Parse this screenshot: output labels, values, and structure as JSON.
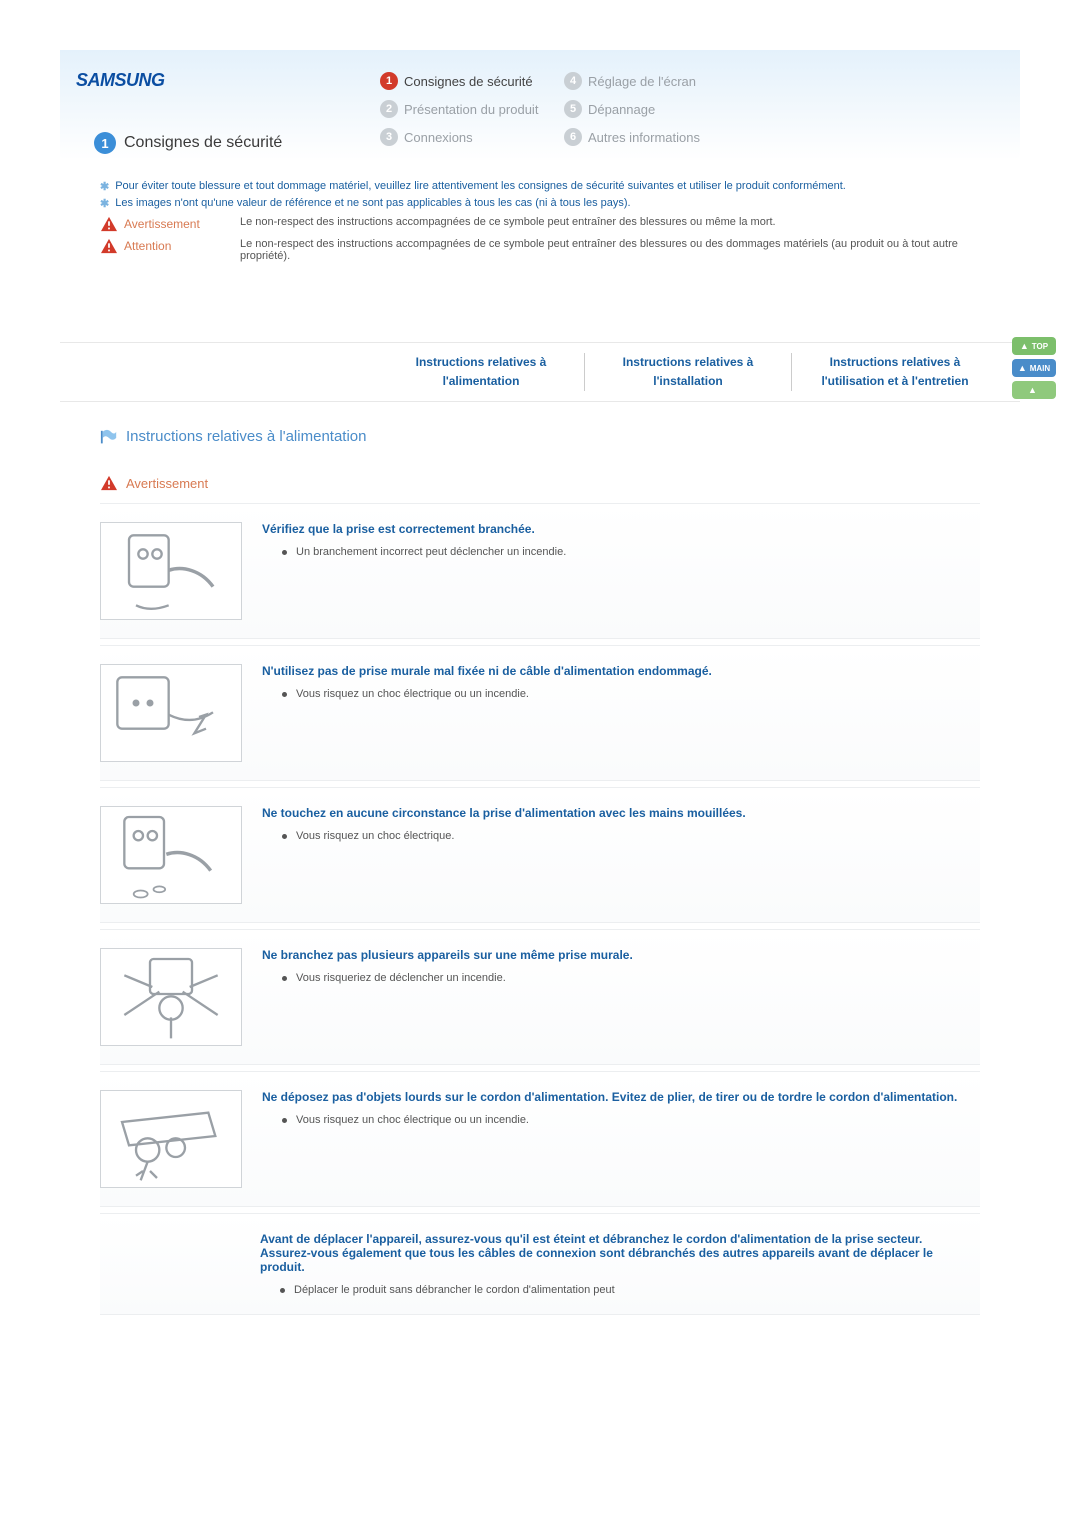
{
  "colors": {
    "accent_blue": "#1a5fa0",
    "text_gray": "#555555",
    "soft_orange": "#d87a52",
    "header_gradient_top": "#e4f1fb",
    "nav_inactive": "#9aa0a6",
    "nav_active_badge": "#d23a2a",
    "title_badge": "#3b8ed8",
    "section_title": "#4a8cc9",
    "border": "#e8e8e8",
    "side_top": "#7cbf6b",
    "side_main": "#4a8cc9",
    "side_back": "#8fc97c"
  },
  "logo": "SAMSUNG",
  "nav": [
    {
      "n": "1",
      "label": "Consignes de sécurité",
      "active": true
    },
    {
      "n": "2",
      "label": "Présentation du produit",
      "active": false
    },
    {
      "n": "3",
      "label": "Connexions",
      "active": false
    },
    {
      "n": "4",
      "label": "Réglage de l'écran",
      "active": false
    },
    {
      "n": "5",
      "label": "Dépannage",
      "active": false
    },
    {
      "n": "6",
      "label": "Autres informations",
      "active": false
    }
  ],
  "page_title": {
    "n": "1",
    "text": "Consignes de sécurité"
  },
  "intro": [
    "Pour éviter toute blessure et tout dommage matériel, veuillez lire attentivement les consignes de sécurité suivantes et utiliser le produit conformément.",
    "Les images n'ont qu'une valeur de référence et ne sont pas applicables à tous les cas (ni à tous les pays)."
  ],
  "legend": [
    {
      "label": "Avertissement",
      "desc": "Le non-respect des instructions accompagnées de ce symbole peut entraîner des blessures ou même la mort."
    },
    {
      "label": "Attention",
      "desc": "Le non-respect des instructions accompagnées de ce symbole peut entraîner des blessures ou des dommages matériels (au produit ou à tout autre propriété)."
    }
  ],
  "subnav": [
    "Instructions relatives à l'alimentation",
    "Instructions relatives à l'installation",
    "Instructions relatives à l'utilisation et à l'entretien"
  ],
  "side_buttons": [
    {
      "label": "TOP",
      "bg": "#7cbf6b"
    },
    {
      "label": "MAIN",
      "bg": "#4a8cc9"
    },
    {
      "label": "",
      "bg": "#8fc97c"
    }
  ],
  "section_title": "Instructions relatives à l'alimentation",
  "warning_heading": "Avertissement",
  "items": [
    {
      "title": "Vérifiez que la prise est correctement branchée.",
      "desc": "Un branchement incorrect peut déclencher un incendie.",
      "thumb": true
    },
    {
      "title": "N'utilisez pas de prise murale mal fixée ni de câble d'alimentation endommagé.",
      "desc": "Vous risquez un choc électrique ou un incendie.",
      "thumb": true
    },
    {
      "title": "Ne touchez en aucune circonstance la prise d'alimentation avec les mains mouillées.",
      "desc": "Vous risquez un choc électrique.",
      "thumb": true
    },
    {
      "title": "Ne branchez pas plusieurs appareils sur une même prise murale.",
      "desc": "Vous risqueriez de déclencher un incendie.",
      "thumb": true
    },
    {
      "title": "Ne déposez pas d'objets lourds sur le cordon d'alimentation. Evitez de plier, de tirer ou de tordre le cordon d'alimentation.",
      "desc": "Vous risquez un choc électrique ou un incendie.",
      "thumb": true
    },
    {
      "title": "Avant de déplacer l'appareil, assurez-vous qu'il est éteint et débranchez le cordon d'alimentation de la prise secteur. Assurez-vous également que tous les câbles de connexion sont débranchés des autres appareils avant de déplacer le produit.",
      "desc": "Déplacer le produit sans débrancher le cordon d'alimentation peut",
      "thumb": false
    }
  ],
  "thumb_svgs": [
    "<svg viewBox='0 0 120 90'><rect x='24' y='14' width='34' height='44' rx='4' fill='none' stroke='#9aa0a6' stroke-width='2'/><circle cx='36' cy='30' r='4' fill='none' stroke='#9aa0a6' stroke-width='2'/><circle cx='48' cy='30' r='4' fill='none' stroke='#9aa0a6' stroke-width='2'/><path d='M58 44 C70 40 86 44 96 58' fill='none' stroke='#9aa0a6' stroke-width='3'/><path d='M58 74 Q42 80 30 74' fill='none' stroke='#9aa0a6' stroke-width='2'/></svg>",
    "<svg viewBox='0 0 120 90'><rect x='14' y='14' width='44' height='44' rx='4' fill='none' stroke='#9aa0a6' stroke-width='2'/><circle cx='30' cy='36' r='3' fill='#9aa0a6'/><circle cx='42' cy='36' r='3' fill='#9aa0a6'/><path d='M58 46 Q78 56 96 44 M84 48 l6 -2 l-10 16 l10 -4' fill='none' stroke='#9aa0a6' stroke-width='2'/></svg>",
    "<svg viewBox='0 0 120 90'><rect x='20' y='12' width='34' height='44' rx='4' fill='none' stroke='#9aa0a6' stroke-width='2'/><circle cx='32' cy='28' r='4' fill='none' stroke='#9aa0a6' stroke-width='2'/><circle cx='44' cy='28' r='4' fill='none' stroke='#9aa0a6' stroke-width='2'/><path d='M56 44 C68 40 84 44 94 58' fill='none' stroke='#9aa0a6' stroke-width='3'/><ellipse cx='34' cy='78' rx='6' ry='3' fill='none' stroke='#9aa0a6' stroke-width='1.5'/><ellipse cx='50' cy='74' rx='5' ry='2.5' fill='none' stroke='#9aa0a6' stroke-width='1.5'/></svg>",
    "<svg viewBox='0 0 120 90'><rect x='42' y='12' width='36' height='30' rx='3' fill='none' stroke='#9aa0a6' stroke-width='2'/><path d='M20 60 L50 40 M100 60 L70 40 M20 26 L44 36 M100 26 L76 36 M60 62 L60 80' fill='none' stroke='#9aa0a6' stroke-width='2'/><circle cx='60' cy='54' r='10' fill='none' stroke='#9aa0a6' stroke-width='2'/></svg>",
    "<svg viewBox='0 0 120 90'><path d='M18 30 L92 22 L98 42 L24 50 Z' fill='none' stroke='#9aa0a6' stroke-width='2'/><circle cx='40' cy='54' r='10' fill='none' stroke='#9aa0a6' stroke-width='2'/><circle cx='64' cy='52' r='8' fill='none' stroke='#9aa0a6' stroke-width='2'/><path d='M40 64 L34 80 M36 72 L30 76 M42 72 L48 78' fill='none' stroke='#9aa0a6' stroke-width='2'/></svg>"
  ]
}
